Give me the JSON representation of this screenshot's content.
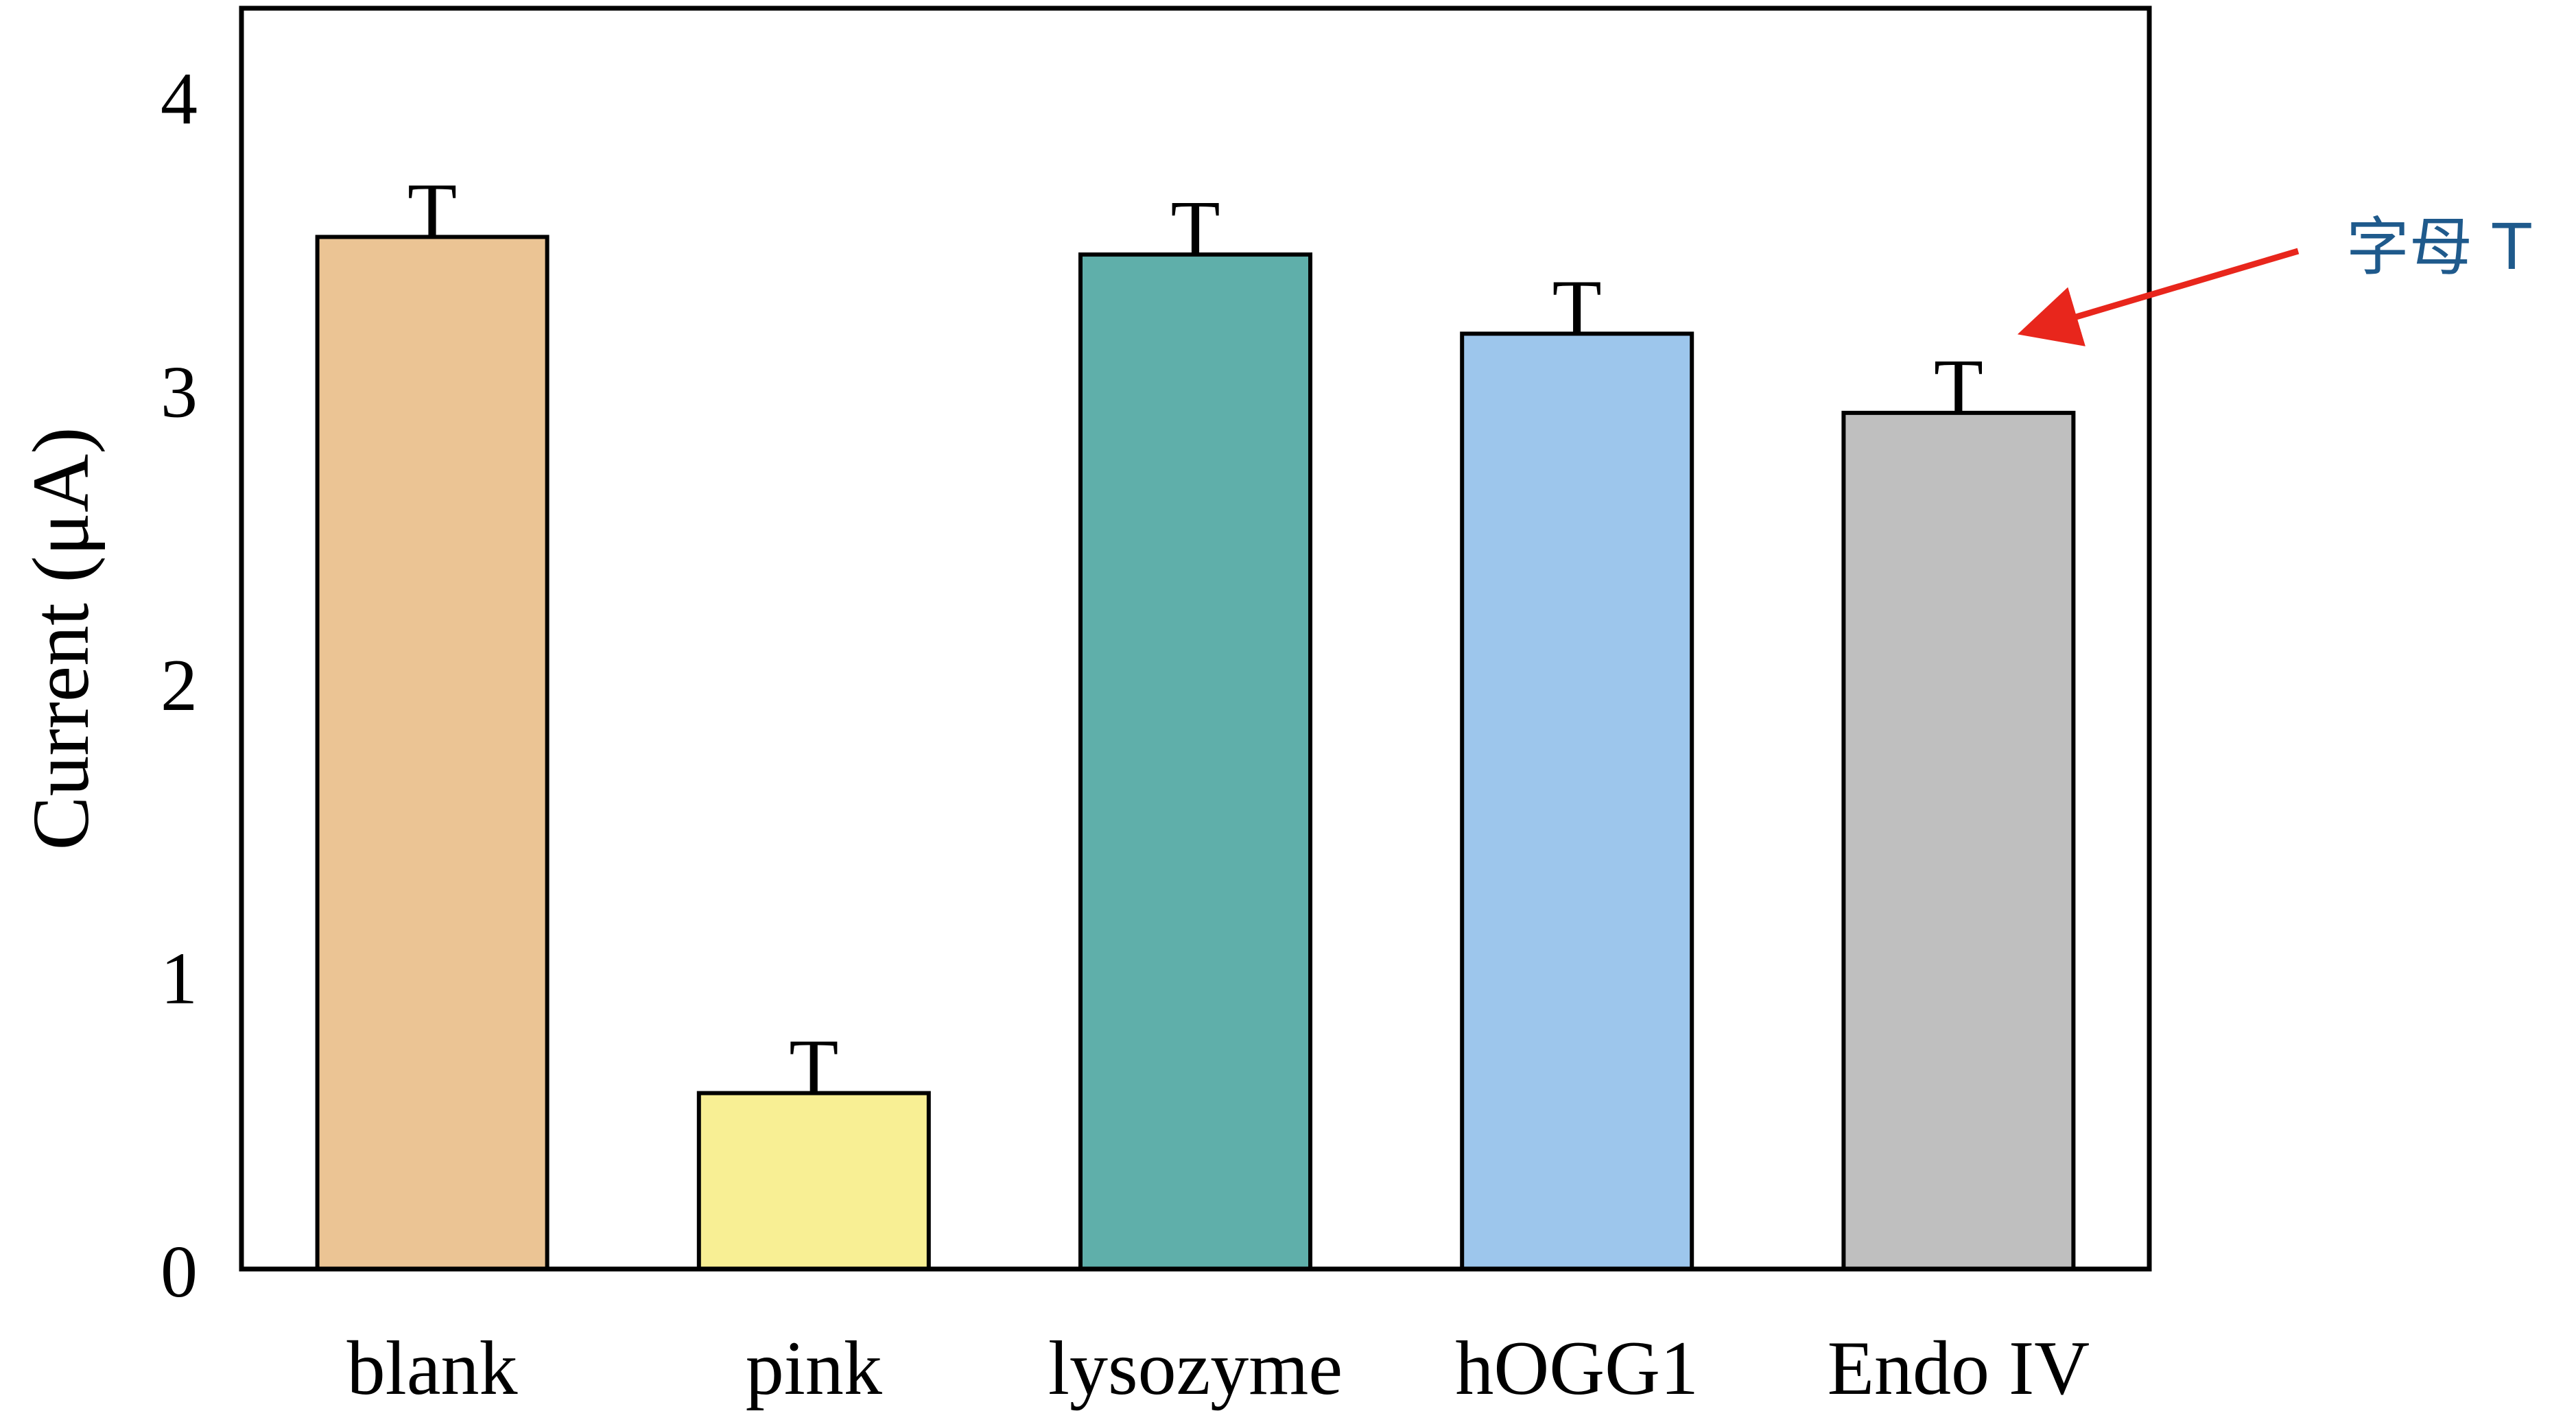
{
  "chart_data": {
    "type": "bar",
    "title": "",
    "xlabel": "",
    "ylabel": "Current (μA)",
    "categories": [
      "blank",
      "pink",
      "lysozyme",
      "hOGG1",
      "Endo IV"
    ],
    "values": [
      3.52,
      0.6,
      3.46,
      3.19,
      2.92
    ],
    "error_markers": [
      "T",
      "T",
      "T",
      "T",
      "T"
    ],
    "bar_colors": [
      "#EBC494",
      "#F8EF94",
      "#5FAFAA",
      "#9DC6EC",
      "#BFBFBF"
    ],
    "ylim": [
      0,
      4.3
    ],
    "yticks": [
      "0",
      "1",
      "2",
      "3",
      "4"
    ],
    "ytick_values": [
      0,
      1,
      2,
      3,
      4
    ],
    "grid": false,
    "legend": "none",
    "annotation": {
      "text": "字母 T",
      "target_category": "Endo IV",
      "arrow_color": "#E8261C",
      "text_color": "#1F5A8C"
    }
  }
}
